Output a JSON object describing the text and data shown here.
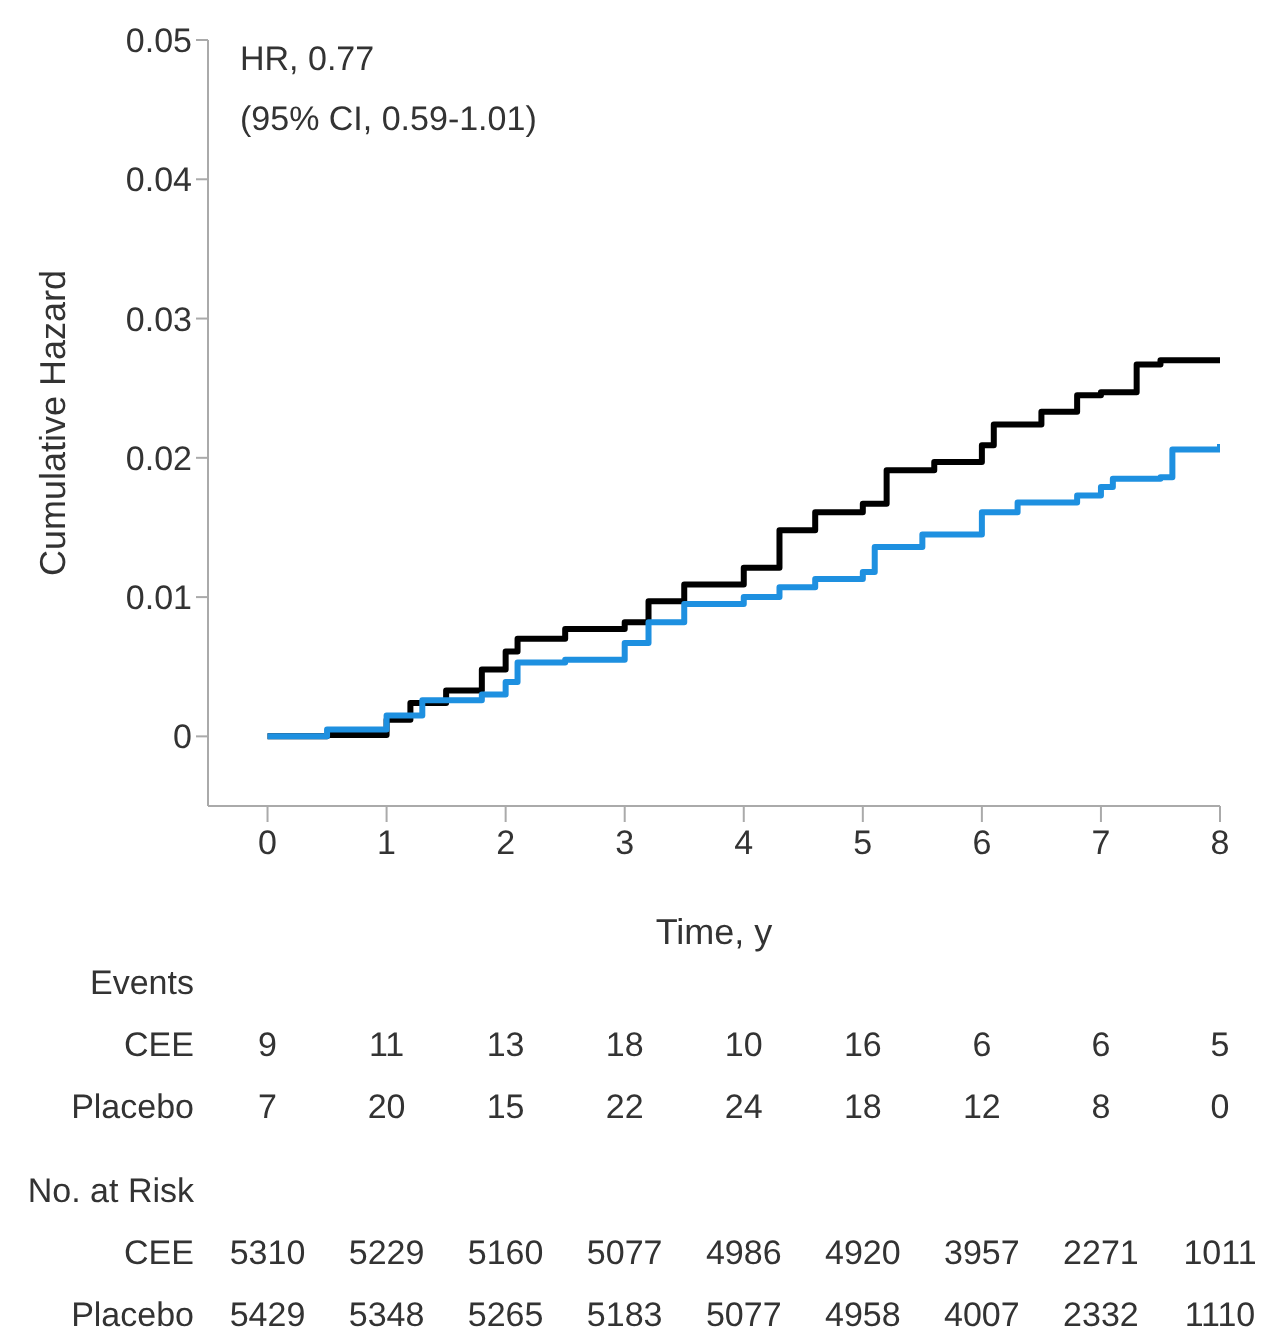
{
  "chart_data": {
    "type": "step",
    "xlabel": "Time, y",
    "ylabel": "Cumulative Hazard",
    "xlim": [
      -0.5,
      8
    ],
    "xticks": [
      0,
      1,
      2,
      3,
      4,
      5,
      6,
      7,
      8
    ],
    "ylim": [
      -0.005,
      0.05
    ],
    "yticks": [
      0,
      0.01,
      0.02,
      0.03,
      0.04,
      0.05
    ],
    "grid": false,
    "legend": false,
    "marker": "none",
    "line_style": "solid",
    "series": [
      {
        "color": "#000000",
        "x": [
          0,
          0.5,
          1,
          1.2,
          1.5,
          1.8,
          2,
          2.1,
          2.5,
          3,
          3.2,
          3.5,
          4,
          4.3,
          4.6,
          5,
          5.2,
          5.6,
          6,
          6.1,
          6.5,
          6.8,
          7,
          7.3,
          7.5,
          8
        ],
        "values": [
          0,
          0.0001,
          0.0012,
          0.0024,
          0.0033,
          0.0048,
          0.0061,
          0.007,
          0.0077,
          0.0082,
          0.0097,
          0.0109,
          0.0121,
          0.0148,
          0.0161,
          0.0167,
          0.0191,
          0.0197,
          0.0209,
          0.0224,
          0.0233,
          0.0245,
          0.0247,
          0.0267,
          0.027,
          0.027
        ]
      },
      {
        "color": "#1e90e0",
        "x": [
          0,
          0.5,
          1,
          1.3,
          1.8,
          2,
          2.1,
          2.5,
          3,
          3.2,
          3.5,
          4,
          4.3,
          4.6,
          5,
          5.1,
          5.5,
          6,
          6.3,
          6.8,
          7,
          7.1,
          7.5,
          7.6,
          8
        ],
        "values": [
          0,
          0.0005,
          0.0015,
          0.0026,
          0.003,
          0.0039,
          0.0053,
          0.0055,
          0.0067,
          0.0082,
          0.0095,
          0.01,
          0.0107,
          0.0113,
          0.0118,
          0.0136,
          0.0145,
          0.0161,
          0.0168,
          0.0173,
          0.0179,
          0.0185,
          0.0186,
          0.0206,
          0.021
        ]
      }
    ],
    "annotations": [
      "HR, 0.77",
      "(95% CI, 0.59-1.01)",
      "Events",
      "CEE 9 11 13 18 10 16 6 6 5",
      "Placebo 7 20 15 22 24 18 12 8 0",
      "No. at Risk",
      "CEE 5310 5229 5160 5077 4986 4920 3957 2271 1011",
      "Placebo 5429 5348 5265 5183 5077 4958 4007 2332 1110"
    ]
  }
}
